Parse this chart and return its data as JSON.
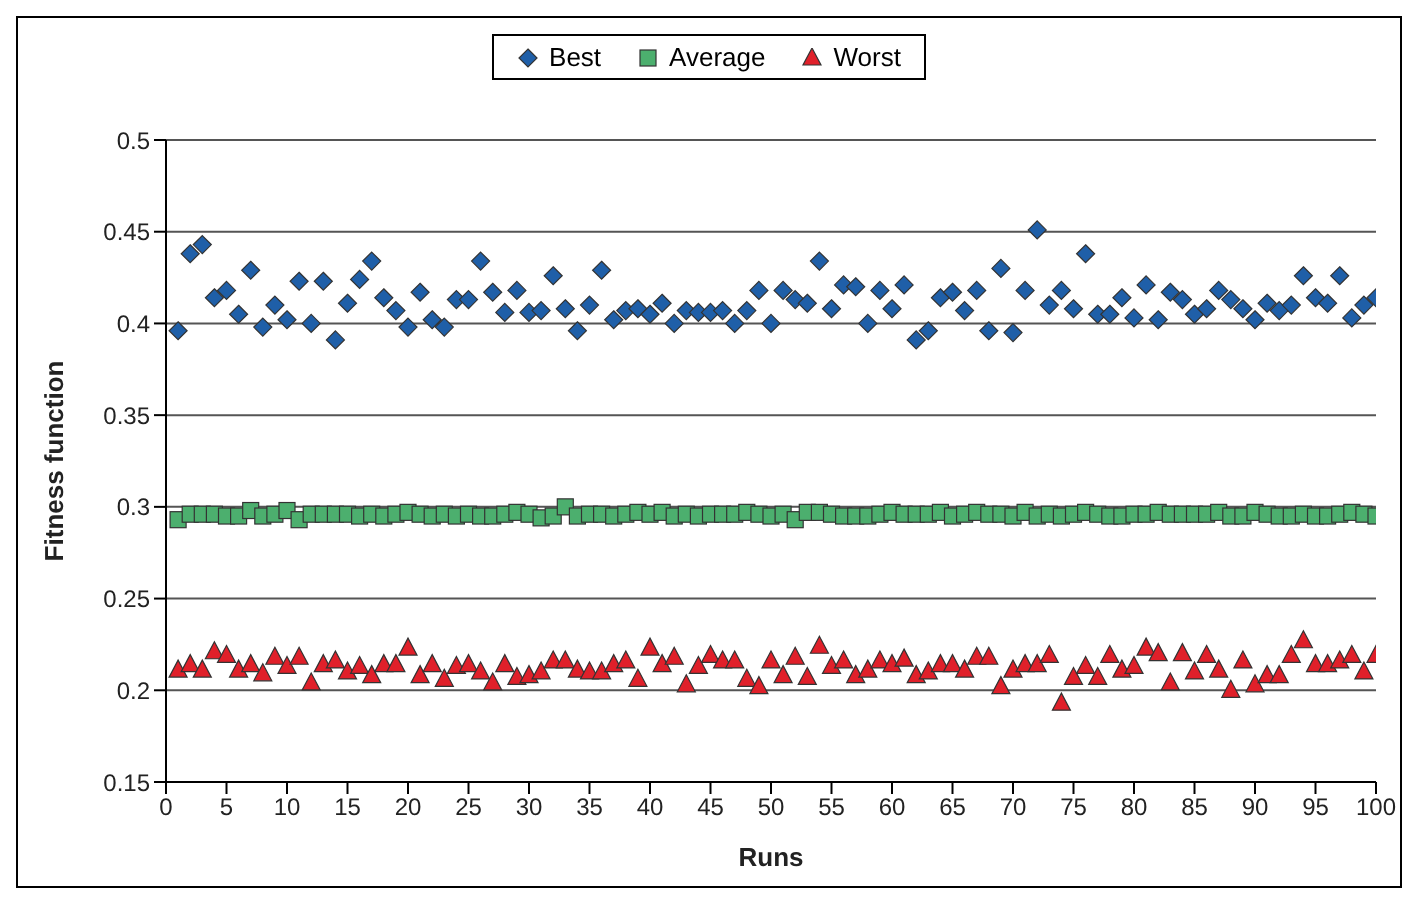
{
  "chart_data": {
    "type": "scatter",
    "xlabel": "Runs",
    "ylabel": "Fitness function",
    "x": [
      1,
      2,
      3,
      4,
      5,
      6,
      7,
      8,
      9,
      10,
      11,
      12,
      13,
      14,
      15,
      16,
      17,
      18,
      19,
      20,
      21,
      22,
      23,
      24,
      25,
      26,
      27,
      28,
      29,
      30,
      31,
      32,
      33,
      34,
      35,
      36,
      37,
      38,
      39,
      40,
      41,
      42,
      43,
      44,
      45,
      46,
      47,
      48,
      49,
      50,
      51,
      52,
      53,
      54,
      55,
      56,
      57,
      58,
      59,
      60,
      61,
      62,
      63,
      64,
      65,
      66,
      67,
      68,
      69,
      70,
      71,
      72,
      73,
      74,
      75,
      76,
      77,
      78,
      79,
      80,
      81,
      82,
      83,
      84,
      85,
      86,
      87,
      88,
      89,
      90,
      91,
      92,
      93,
      94,
      95,
      96,
      97,
      98,
      99,
      100
    ],
    "series": [
      {
        "name": "Best",
        "color": "#1f5fa8",
        "marker": "diamond",
        "values": [
          0.396,
          0.438,
          0.443,
          0.414,
          0.418,
          0.405,
          0.429,
          0.398,
          0.41,
          0.402,
          0.423,
          0.4,
          0.423,
          0.391,
          0.411,
          0.424,
          0.434,
          0.414,
          0.407,
          0.398,
          0.417,
          0.402,
          0.398,
          0.413,
          0.413,
          0.434,
          0.417,
          0.406,
          0.418,
          0.406,
          0.407,
          0.426,
          0.408,
          0.396,
          0.41,
          0.429,
          0.402,
          0.407,
          0.408,
          0.405,
          0.411,
          0.4,
          0.407,
          0.406,
          0.406,
          0.407,
          0.4,
          0.407,
          0.418,
          0.4,
          0.418,
          0.413,
          0.411,
          0.434,
          0.408,
          0.421,
          0.42,
          0.4,
          0.418,
          0.408,
          0.421,
          0.391,
          0.396,
          0.414,
          0.417,
          0.407,
          0.418,
          0.396,
          0.43,
          0.395,
          0.418,
          0.451,
          0.41,
          0.418,
          0.408,
          0.438,
          0.405,
          0.405,
          0.414,
          0.403,
          0.421,
          0.402,
          0.417,
          0.413,
          0.405,
          0.408,
          0.418,
          0.413,
          0.408,
          0.402,
          0.411,
          0.407,
          0.41,
          0.426,
          0.414,
          0.411,
          0.426,
          0.403,
          0.41,
          0.414
        ]
      },
      {
        "name": "Average",
        "color": "#4caf6e",
        "marker": "square",
        "values": [
          0.293,
          0.296,
          0.296,
          0.296,
          0.295,
          0.295,
          0.298,
          0.295,
          0.296,
          0.298,
          0.293,
          0.296,
          0.296,
          0.296,
          0.296,
          0.295,
          0.296,
          0.295,
          0.296,
          0.297,
          0.296,
          0.295,
          0.296,
          0.295,
          0.296,
          0.295,
          0.295,
          0.296,
          0.297,
          0.296,
          0.294,
          0.295,
          0.3,
          0.295,
          0.296,
          0.296,
          0.295,
          0.296,
          0.297,
          0.296,
          0.297,
          0.295,
          0.296,
          0.295,
          0.296,
          0.296,
          0.296,
          0.297,
          0.296,
          0.295,
          0.296,
          0.293,
          0.297,
          0.297,
          0.296,
          0.295,
          0.295,
          0.295,
          0.296,
          0.297,
          0.296,
          0.296,
          0.296,
          0.297,
          0.295,
          0.296,
          0.297,
          0.296,
          0.296,
          0.295,
          0.297,
          0.295,
          0.296,
          0.295,
          0.296,
          0.297,
          0.296,
          0.295,
          0.295,
          0.296,
          0.296,
          0.297,
          0.296,
          0.296,
          0.296,
          0.296,
          0.297,
          0.295,
          0.295,
          0.297,
          0.296,
          0.295,
          0.295,
          0.296,
          0.295,
          0.295,
          0.296,
          0.297,
          0.296,
          0.295
        ]
      },
      {
        "name": "Worst",
        "color": "#e0202a",
        "marker": "triangle",
        "values": [
          0.211,
          0.214,
          0.211,
          0.221,
          0.219,
          0.211,
          0.214,
          0.209,
          0.218,
          0.213,
          0.218,
          0.204,
          0.214,
          0.216,
          0.21,
          0.213,
          0.208,
          0.214,
          0.214,
          0.223,
          0.208,
          0.214,
          0.206,
          0.213,
          0.214,
          0.21,
          0.204,
          0.214,
          0.207,
          0.208,
          0.21,
          0.216,
          0.216,
          0.211,
          0.21,
          0.21,
          0.214,
          0.216,
          0.206,
          0.223,
          0.214,
          0.218,
          0.203,
          0.213,
          0.219,
          0.216,
          0.216,
          0.206,
          0.202,
          0.216,
          0.208,
          0.218,
          0.207,
          0.224,
          0.213,
          0.216,
          0.208,
          0.211,
          0.216,
          0.214,
          0.217,
          0.208,
          0.21,
          0.214,
          0.214,
          0.211,
          0.218,
          0.218,
          0.202,
          0.211,
          0.214,
          0.214,
          0.219,
          0.193,
          0.207,
          0.213,
          0.207,
          0.219,
          0.211,
          0.213,
          0.223,
          0.22,
          0.204,
          0.22,
          0.21,
          0.219,
          0.211,
          0.2,
          0.216,
          0.203,
          0.208,
          0.208,
          0.219,
          0.227,
          0.214,
          0.214,
          0.216,
          0.219,
          0.21,
          0.219
        ]
      }
    ],
    "xlim": [
      0,
      100
    ],
    "xticks": [
      0,
      5,
      10,
      15,
      20,
      25,
      30,
      35,
      40,
      45,
      50,
      55,
      60,
      65,
      70,
      75,
      80,
      85,
      90,
      95,
      100
    ],
    "ylim": [
      0.15,
      0.5
    ],
    "yticks": [
      0.15,
      0.2,
      0.25,
      0.3,
      0.35,
      0.4,
      0.45,
      0.5
    ],
    "grid": "y",
    "legend": "top"
  }
}
